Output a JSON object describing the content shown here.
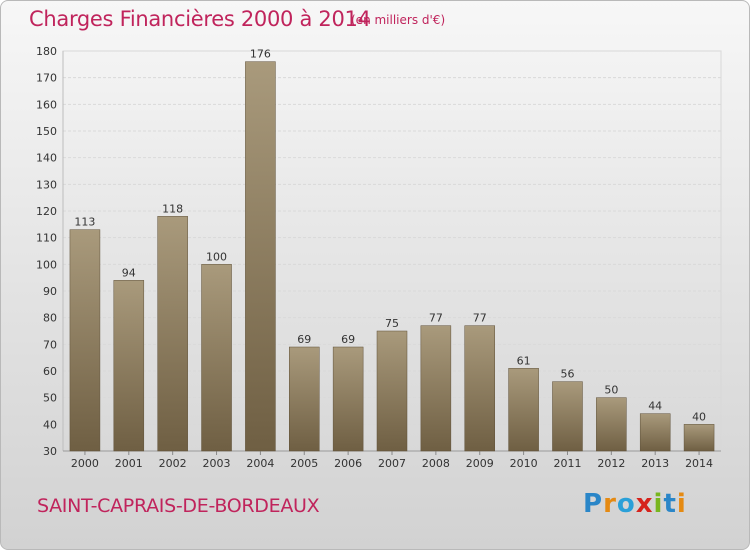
{
  "header": {
    "title": "Charges Financières 2000 à 2014",
    "subtitle": "(en milliers d'€)"
  },
  "footer": {
    "commune": "SAINT-CAPRAIS-DE-BORDEAUX",
    "logo_text": "Proxiti",
    "logo_letters": [
      {
        "ch": "P",
        "color": "#2a86c8"
      },
      {
        "ch": "r",
        "color": "#e58a12"
      },
      {
        "ch": "o",
        "color": "#2aa0d8"
      },
      {
        "ch": "x",
        "color": "#d6231c"
      },
      {
        "ch": "i",
        "color": "#78b61f"
      },
      {
        "ch": "t",
        "color": "#2a86c8"
      },
      {
        "ch": "i",
        "color": "#e58a12"
      }
    ]
  },
  "chart_data": {
    "type": "bar",
    "title": "Charges Financières 2000 à 2014",
    "subtitle": "(en milliers d'€)",
    "categories": [
      "2000",
      "2001",
      "2002",
      "2003",
      "2004",
      "2005",
      "2006",
      "2007",
      "2008",
      "2009",
      "2010",
      "2011",
      "2012",
      "2013",
      "2014"
    ],
    "values": [
      113,
      94,
      118,
      100,
      176,
      69,
      69,
      75,
      77,
      77,
      61,
      56,
      50,
      44,
      40
    ],
    "xlabel": "",
    "ylabel": "",
    "ylim": [
      30,
      180
    ],
    "yticks": [
      30,
      40,
      50,
      60,
      70,
      80,
      90,
      100,
      110,
      120,
      130,
      140,
      150,
      160,
      170,
      180
    ],
    "grid": true,
    "bar_color_top": "#a99a7c",
    "bar_color_bottom": "#6f5f43",
    "accent_color": "#c0245c"
  }
}
